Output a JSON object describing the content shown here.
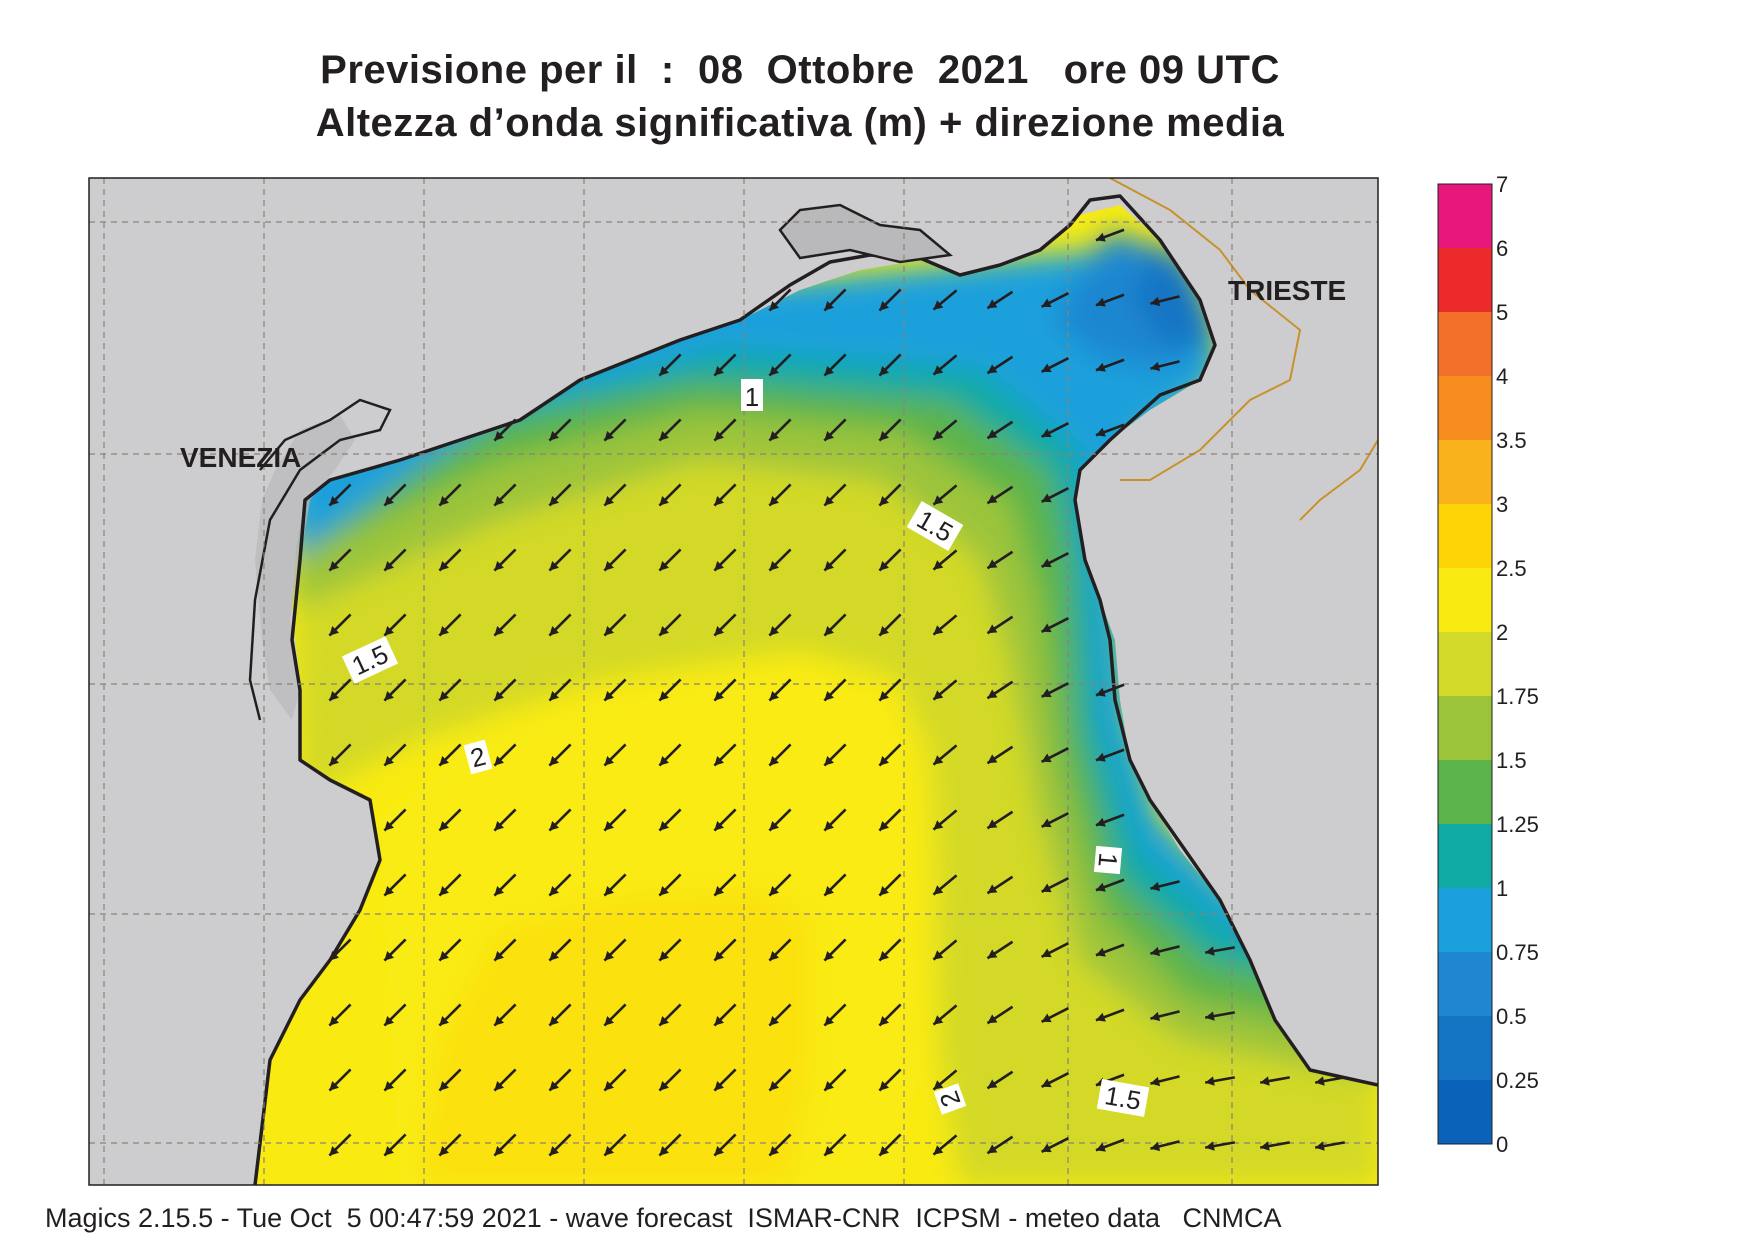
{
  "title": {
    "line1": "Previsione per il  :  08  Ottobre  2021   ore 09 UTC",
    "line2": "Altezza d’onda significativa (m) + direzione media"
  },
  "footer": "Magics 2.15.5 - Tue Oct  5 00:47:59 2021 - wave forecast  ISMAR-CNR  ICPSM - meteo data   CNMCA",
  "places": {
    "venezia": "VENEZIA",
    "trieste": "TRIESTE"
  },
  "contour_labels": {
    "c1_north": "1",
    "c15_center": "1.5",
    "c15_west": "1.5",
    "c2_west": "2",
    "c1_east": "1",
    "c2_south": "2",
    "c15_south": "1.5"
  },
  "legend": {
    "unit": "m",
    "levels": [
      "0",
      "0.25",
      "0.5",
      "0.75",
      "1",
      "1.25",
      "1.5",
      "1.75",
      "2",
      "2.5",
      "3",
      "3.5",
      "4",
      "5",
      "6",
      "7"
    ],
    "colors": [
      "#0a63b8",
      "#1374c4",
      "#1f87d1",
      "#1ba0dc",
      "#0faaa4",
      "#5cb44c",
      "#9cc43a",
      "#d3d928",
      "#f9eb12",
      "#fdd406",
      "#f9b21c",
      "#f78d1e",
      "#f3702a",
      "#ec2a2b",
      "#e8177b"
    ]
  },
  "wave_direction": "mostly from north-east (arrows pointing south-west)",
  "colors": {
    "land": "#cdcdcf",
    "coastline": "#231f20",
    "border": "#c8922a",
    "grid": "#8a8278"
  }
}
